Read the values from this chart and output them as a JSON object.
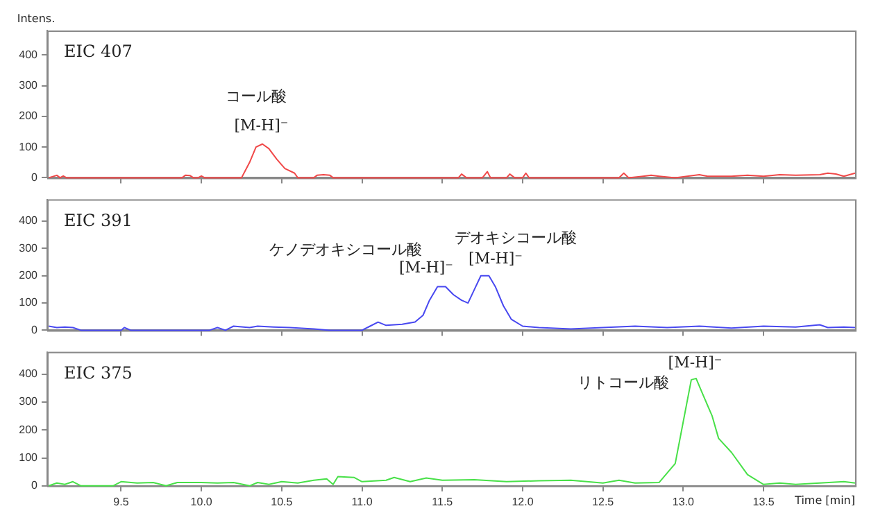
{
  "chart_data": [
    {
      "type": "line",
      "ylabel": "Intens.",
      "annotations": [
        "EIC 407",
        "コール酸",
        "[M-H]⁻"
      ],
      "x": [
        9.05,
        9.1,
        9.12,
        9.14,
        9.16,
        9.5,
        9.88,
        9.9,
        9.93,
        9.95,
        9.98,
        10.0,
        10.02,
        10.25,
        10.3,
        10.34,
        10.38,
        10.42,
        10.47,
        10.52,
        10.58,
        10.6,
        10.7,
        10.72,
        10.76,
        10.8,
        10.82,
        11.6,
        11.62,
        11.65,
        11.75,
        11.78,
        11.8,
        11.9,
        11.92,
        11.95,
        12.0,
        12.02,
        12.04,
        12.15,
        12.45,
        12.6,
        12.63,
        12.66,
        12.75,
        12.8,
        12.85,
        12.95,
        13.1,
        13.15,
        13.3,
        13.4,
        13.5,
        13.6,
        13.7,
        13.85,
        13.9,
        13.95,
        14.0,
        14.07
      ],
      "series": [
        {
          "color": "#f04848",
          "values": [
            0,
            8,
            0,
            6,
            0,
            0,
            0,
            8,
            7,
            0,
            0,
            6,
            0,
            0,
            50,
            100,
            110,
            95,
            60,
            30,
            15,
            0,
            0,
            8,
            10,
            8,
            0,
            0,
            12,
            0,
            0,
            20,
            0,
            0,
            12,
            0,
            0,
            15,
            0,
            0,
            0,
            0,
            15,
            0,
            5,
            8,
            5,
            0,
            10,
            5,
            5,
            8,
            5,
            10,
            8,
            10,
            15,
            12,
            5,
            15
          ]
        }
      ],
      "xlim": [
        9.04,
        14.07
      ],
      "ylim": [
        0,
        480
      ],
      "yticks": [
        0,
        100,
        200,
        300,
        400
      ],
      "xticks": [
        {
          "value": 9.5,
          "label": null
        },
        {
          "value": 10,
          "label": null
        },
        {
          "value": 10.5,
          "label": null
        },
        {
          "value": 11,
          "label": null
        },
        {
          "value": 11.5,
          "label": null
        },
        {
          "value": 12,
          "label": null
        },
        {
          "value": 12.5,
          "label": null
        },
        {
          "value": 13,
          "label": null
        },
        {
          "value": 13.5,
          "label": null
        }
      ],
      "tick_labels": "y",
      "grid": false,
      "legend": false
    },
    {
      "type": "line",
      "annotations": [
        "EIC 391",
        "ケノデオキシコール酸",
        "[M-H]⁻",
        "デオキシコール酸",
        "[M-H]⁻"
      ],
      "x": [
        9.05,
        9.1,
        9.15,
        9.2,
        9.25,
        9.5,
        9.52,
        9.56,
        10.05,
        10.1,
        10.15,
        10.2,
        10.3,
        10.35,
        10.45,
        10.55,
        10.7,
        10.8,
        11.0,
        11.05,
        11.1,
        11.15,
        11.25,
        11.33,
        11.38,
        11.42,
        11.47,
        11.52,
        11.57,
        11.62,
        11.66,
        11.7,
        11.74,
        11.79,
        11.83,
        11.88,
        11.93,
        12.0,
        12.1,
        12.3,
        12.5,
        12.7,
        12.9,
        13.1,
        13.3,
        13.5,
        13.7,
        13.85,
        13.9,
        14.0,
        14.07
      ],
      "series": [
        {
          "color": "#4848f0",
          "values": [
            15,
            10,
            12,
            10,
            0,
            0,
            10,
            0,
            0,
            10,
            0,
            15,
            10,
            15,
            12,
            10,
            5,
            0,
            0,
            15,
            30,
            18,
            22,
            30,
            55,
            110,
            160,
            160,
            130,
            110,
            100,
            150,
            200,
            200,
            160,
            90,
            40,
            15,
            10,
            5,
            10,
            15,
            10,
            15,
            8,
            15,
            12,
            20,
            10,
            12,
            10
          ]
        }
      ],
      "xlim": [
        9.04,
        14.07
      ],
      "ylim": [
        0,
        480
      ],
      "yticks": [
        0,
        100,
        200,
        300,
        400
      ],
      "xticks": [
        {
          "value": 9.5,
          "label": null
        },
        {
          "value": 10,
          "label": null
        },
        {
          "value": 10.5,
          "label": null
        },
        {
          "value": 11,
          "label": null
        },
        {
          "value": 11.5,
          "label": null
        },
        {
          "value": 12,
          "label": null
        },
        {
          "value": 12.5,
          "label": null
        },
        {
          "value": 13,
          "label": null
        },
        {
          "value": 13.5,
          "label": null
        }
      ],
      "tick_labels": "y",
      "grid": false,
      "legend": false
    },
    {
      "type": "line",
      "xlabel": "Time [min]",
      "annotations": [
        "EIC 375",
        "[M-H]⁻",
        "リトコール酸"
      ],
      "x": [
        9.05,
        9.1,
        9.15,
        9.2,
        9.25,
        9.45,
        9.5,
        9.6,
        9.7,
        9.78,
        9.85,
        10.0,
        10.1,
        10.2,
        10.3,
        10.35,
        10.42,
        10.5,
        10.6,
        10.65,
        10.7,
        10.78,
        10.82,
        10.85,
        10.95,
        11.0,
        11.15,
        11.2,
        11.3,
        11.4,
        11.5,
        11.7,
        11.9,
        12.1,
        12.3,
        12.5,
        12.6,
        12.7,
        12.85,
        12.95,
        13.0,
        13.05,
        13.08,
        13.12,
        13.18,
        13.22,
        13.3,
        13.4,
        13.5,
        13.6,
        13.7,
        13.85,
        14.0,
        14.07
      ],
      "series": [
        {
          "color": "#48e048",
          "values": [
            0,
            10,
            5,
            15,
            0,
            0,
            15,
            10,
            12,
            0,
            12,
            12,
            10,
            12,
            0,
            12,
            5,
            15,
            10,
            15,
            20,
            25,
            5,
            33,
            30,
            15,
            20,
            30,
            15,
            28,
            20,
            22,
            15,
            18,
            20,
            10,
            20,
            10,
            12,
            80,
            230,
            380,
            385,
            330,
            250,
            170,
            120,
            40,
            5,
            10,
            5,
            10,
            15,
            10
          ]
        }
      ],
      "xlim": [
        9.04,
        14.07
      ],
      "ylim": [
        0,
        480
      ],
      "yticks": [
        0,
        100,
        200,
        300,
        400
      ],
      "xticks": [
        {
          "value": 9.5,
          "label": "9.5"
        },
        {
          "value": 10,
          "label": "10.0"
        },
        {
          "value": 10.5,
          "label": "10.5"
        },
        {
          "value": 11,
          "label": "11.0"
        },
        {
          "value": 11.5,
          "label": "11.5"
        },
        {
          "value": 12,
          "label": "12.0"
        },
        {
          "value": 12.5,
          "label": "12.5"
        },
        {
          "value": 13,
          "label": "13.0"
        },
        {
          "value": 13.5,
          "label": "13.5"
        }
      ],
      "grid": false,
      "legend": false
    }
  ]
}
